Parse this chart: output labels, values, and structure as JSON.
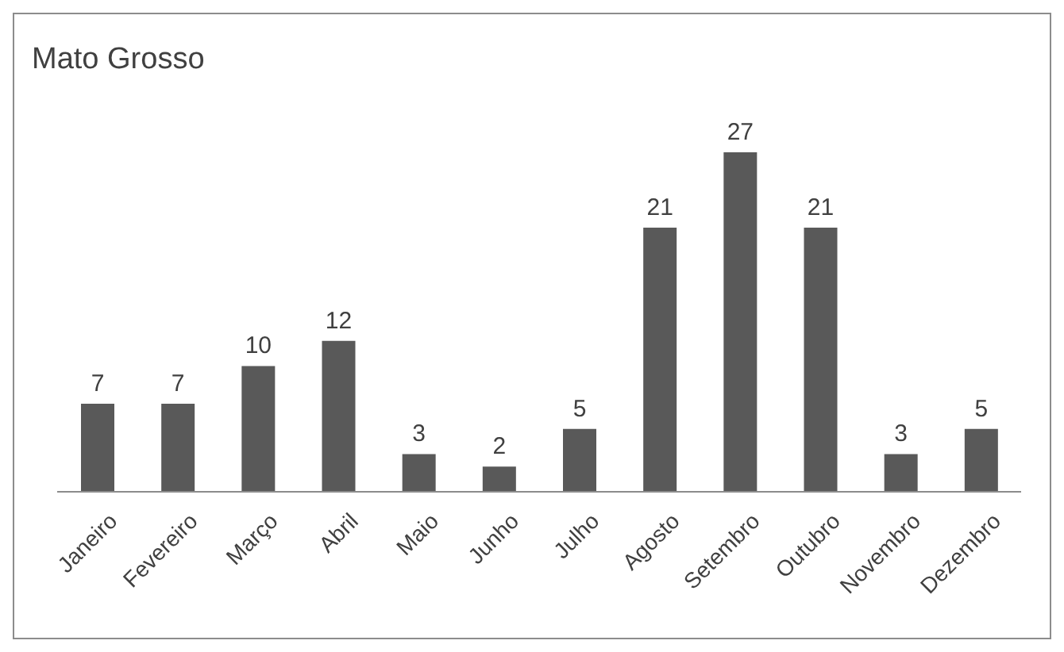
{
  "chart_data": {
    "type": "bar",
    "title": "Mato Grosso",
    "categories": [
      "Janeiro",
      "Fevereiro",
      "Março",
      "Abril",
      "Maio",
      "Junho",
      "Julho",
      "Agosto",
      "Setembro",
      "Outubro",
      "Novembro",
      "Dezembro"
    ],
    "values": [
      7,
      7,
      10,
      12,
      3,
      2,
      5,
      21,
      27,
      21,
      3,
      5
    ],
    "color": "#595959",
    "data_labels": true
  }
}
